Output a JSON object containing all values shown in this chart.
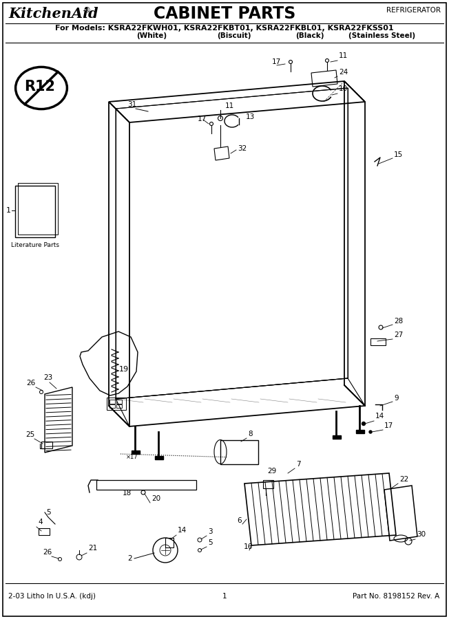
{
  "title": "CABINET PARTS",
  "brand": "KitchenAid®",
  "category": "REFRIGERATOR",
  "models_line": "For Models: KSRA22FKWH01, KSRA22FKBT01, KSRA22FKBL01, KSRA22FKSS01",
  "models_sub": "           (White)              (Biscuit)             (Black)       (Stainless Steel)",
  "footer_left": "2-03 Litho In U.S.A. (kdj)",
  "footer_center": "1",
  "footer_right": "Part No. 8198152 Rev. A",
  "bg_color": "#ffffff",
  "line_color": "#000000"
}
